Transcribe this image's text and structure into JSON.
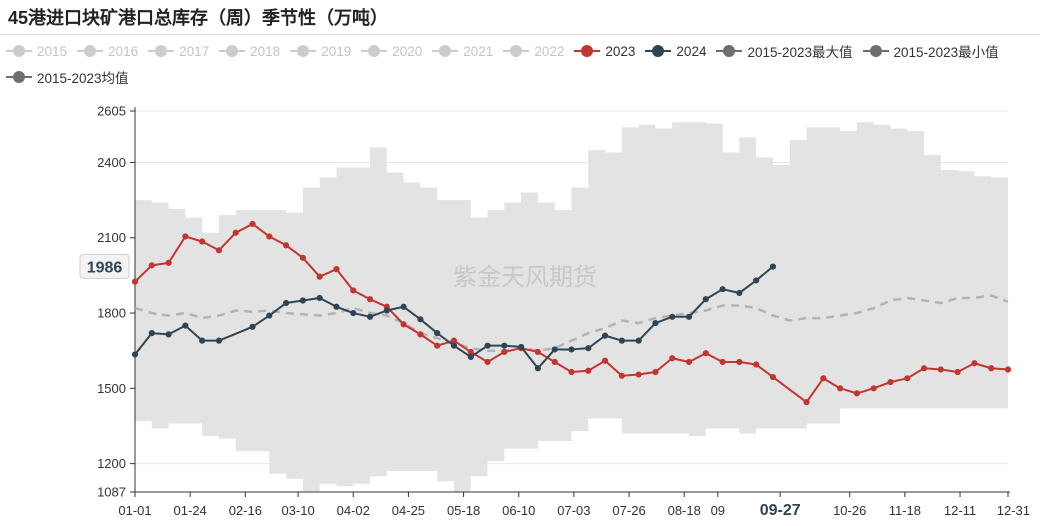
{
  "title": "45港进口块矿港口总库存（周）季节性（万吨）",
  "watermark": "紫金天风期货",
  "legend": [
    {
      "name": "2015",
      "color": "#cccccc",
      "faded": true
    },
    {
      "name": "2016",
      "color": "#cccccc",
      "faded": true
    },
    {
      "name": "2017",
      "color": "#cccccc",
      "faded": true
    },
    {
      "name": "2018",
      "color": "#cccccc",
      "faded": true
    },
    {
      "name": "2019",
      "color": "#cccccc",
      "faded": true
    },
    {
      "name": "2020",
      "color": "#cccccc",
      "faded": true
    },
    {
      "name": "2021",
      "color": "#cccccc",
      "faded": true
    },
    {
      "name": "2022",
      "color": "#cccccc",
      "faded": true
    },
    {
      "name": "2023",
      "color": "#c23531",
      "faded": false
    },
    {
      "name": "2024",
      "color": "#2f4554",
      "faded": false
    },
    {
      "name": "2015-2023最大值",
      "color": "#6e6e6e",
      "faded": false
    },
    {
      "name": "2015-2023最小值",
      "color": "#6e6e6e",
      "faded": false
    },
    {
      "name": "2015-2023均值",
      "color": "#6e6e6e",
      "faded": false
    }
  ],
  "chart_data": {
    "type": "line",
    "title": "45港进口块矿港口总库存（周）季节性（万吨）",
    "xlabel": "",
    "ylabel": "",
    "x_range": [
      1,
      365
    ],
    "ylim": [
      1087,
      2605
    ],
    "y_ticks": [
      1087,
      1200,
      1500,
      1800,
      2100,
      2400,
      2605
    ],
    "y_pointer": 1986,
    "x_ticks": [
      {
        "label": "01-01",
        "day": 1
      },
      {
        "label": "01-24",
        "day": 24
      },
      {
        "label": "02-16",
        "day": 47
      },
      {
        "label": "03-10",
        "day": 69
      },
      {
        "label": "04-02",
        "day": 92
      },
      {
        "label": "04-25",
        "day": 115
      },
      {
        "label": "05-18",
        "day": 138
      },
      {
        "label": "06-10",
        "day": 161
      },
      {
        "label": "07-03",
        "day": 184
      },
      {
        "label": "07-26",
        "day": 207
      },
      {
        "label": "08-18",
        "day": 230
      },
      {
        "label": "09",
        "day": 244
      },
      {
        "label": "09-27",
        "day": 270,
        "highlight": true
      },
      {
        "label": "10-26",
        "day": 299
      },
      {
        "label": "11-18",
        "day": 322
      },
      {
        "label": "12-11",
        "day": 345
      },
      {
        "label": "12-31",
        "day": 365
      }
    ],
    "band": {
      "name_upper": "2015-2023最大值",
      "name_lower": "2015-2023最小值",
      "days": [
        1,
        8,
        15,
        22,
        29,
        36,
        43,
        50,
        57,
        64,
        71,
        78,
        85,
        92,
        99,
        106,
        113,
        120,
        127,
        134,
        141,
        148,
        155,
        162,
        169,
        176,
        183,
        190,
        197,
        204,
        211,
        218,
        225,
        232,
        239,
        246,
        253,
        260,
        267,
        274,
        281,
        288,
        295,
        302,
        309,
        316,
        323,
        330,
        337,
        344,
        351,
        358,
        365
      ],
      "upper": [
        2250,
        2240,
        2215,
        2180,
        2120,
        2190,
        2210,
        2210,
        2210,
        2200,
        2300,
        2340,
        2380,
        2380,
        2460,
        2360,
        2320,
        2300,
        2250,
        2250,
        2180,
        2210,
        2240,
        2280,
        2240,
        2210,
        2300,
        2450,
        2440,
        2540,
        2550,
        2535,
        2560,
        2560,
        2555,
        2440,
        2500,
        2420,
        2390,
        2490,
        2540,
        2540,
        2525,
        2560,
        2550,
        2535,
        2525,
        2430,
        2370,
        2365,
        2345,
        2340,
        2330
      ],
      "lower": [
        1370,
        1340,
        1360,
        1360,
        1310,
        1300,
        1250,
        1250,
        1160,
        1140,
        1090,
        1120,
        1110,
        1120,
        1150,
        1170,
        1170,
        1170,
        1130,
        1090,
        1150,
        1210,
        1260,
        1260,
        1290,
        1290,
        1330,
        1380,
        1380,
        1320,
        1320,
        1320,
        1320,
        1310,
        1340,
        1340,
        1320,
        1340,
        1340,
        1340,
        1360,
        1360,
        1420,
        1420,
        1420,
        1420,
        1420,
        1420,
        1420,
        1420,
        1420,
        1420,
        1420
      ]
    },
    "series": [
      {
        "name": "2015-2023均值",
        "color": "#b3b3b3",
        "dashed": true,
        "markers": false,
        "x": [
          1,
          8,
          15,
          22,
          29,
          36,
          43,
          50,
          57,
          64,
          71,
          78,
          85,
          92,
          99,
          106,
          113,
          120,
          127,
          134,
          141,
          148,
          155,
          162,
          169,
          176,
          183,
          190,
          197,
          204,
          211,
          218,
          225,
          232,
          239,
          246,
          253,
          260,
          267,
          274,
          281,
          288,
          295,
          302,
          309,
          316,
          323,
          330,
          337,
          344,
          351,
          358,
          365
        ],
        "y": [
          1820,
          1800,
          1790,
          1800,
          1780,
          1790,
          1810,
          1805,
          1810,
          1800,
          1795,
          1790,
          1800,
          1820,
          1800,
          1790,
          1760,
          1720,
          1700,
          1680,
          1660,
          1650,
          1650,
          1660,
          1650,
          1660,
          1690,
          1720,
          1740,
          1770,
          1760,
          1780,
          1790,
          1800,
          1810,
          1830,
          1830,
          1820,
          1790,
          1770,
          1780,
          1780,
          1790,
          1800,
          1820,
          1850,
          1860,
          1850,
          1840,
          1860,
          1860,
          1870,
          1845
        ]
      },
      {
        "name": "2023",
        "color": "#c23531",
        "dashed": false,
        "markers": true,
        "x": [
          1,
          8,
          15,
          22,
          29,
          36,
          43,
          50,
          57,
          64,
          71,
          78,
          85,
          92,
          99,
          106,
          113,
          120,
          127,
          134,
          141,
          148,
          155,
          162,
          169,
          176,
          183,
          190,
          197,
          204,
          211,
          218,
          225,
          232,
          239,
          246,
          253,
          260,
          267,
          281,
          288,
          295,
          302,
          309,
          316,
          323,
          330,
          337,
          344,
          351,
          358,
          365
        ],
        "y": [
          1925,
          1990,
          2000,
          2105,
          2085,
          2050,
          2120,
          2155,
          2105,
          2070,
          2020,
          1945,
          1975,
          1890,
          1855,
          1825,
          1755,
          1715,
          1670,
          1690,
          1645,
          1605,
          1645,
          1660,
          1645,
          1605,
          1565,
          1570,
          1610,
          1550,
          1555,
          1565,
          1620,
          1605,
          1640,
          1605,
          1605,
          1595,
          1545,
          1445,
          1540,
          1500,
          1480,
          1500,
          1525,
          1540,
          1580,
          1575,
          1565,
          1600,
          1580,
          1575
        ]
      },
      {
        "name": "2024",
        "color": "#2f4554",
        "dashed": false,
        "markers": true,
        "x": [
          1,
          8,
          15,
          22,
          29,
          36,
          50,
          57,
          64,
          71,
          78,
          85,
          92,
          99,
          106,
          113,
          120,
          127,
          134,
          141,
          148,
          155,
          162,
          169,
          176,
          183,
          190,
          197,
          204,
          211,
          218,
          225,
          232,
          239,
          246,
          253,
          260,
          267
        ],
        "y": [
          1635,
          1720,
          1715,
          1750,
          1690,
          1690,
          1745,
          1790,
          1840,
          1850,
          1860,
          1825,
          1800,
          1785,
          1810,
          1825,
          1775,
          1720,
          1670,
          1625,
          1670,
          1670,
          1665,
          1580,
          1655,
          1655,
          1660,
          1710,
          1690,
          1690,
          1760,
          1785,
          1785,
          1855,
          1895,
          1880,
          1930,
          1985
        ]
      }
    ]
  }
}
